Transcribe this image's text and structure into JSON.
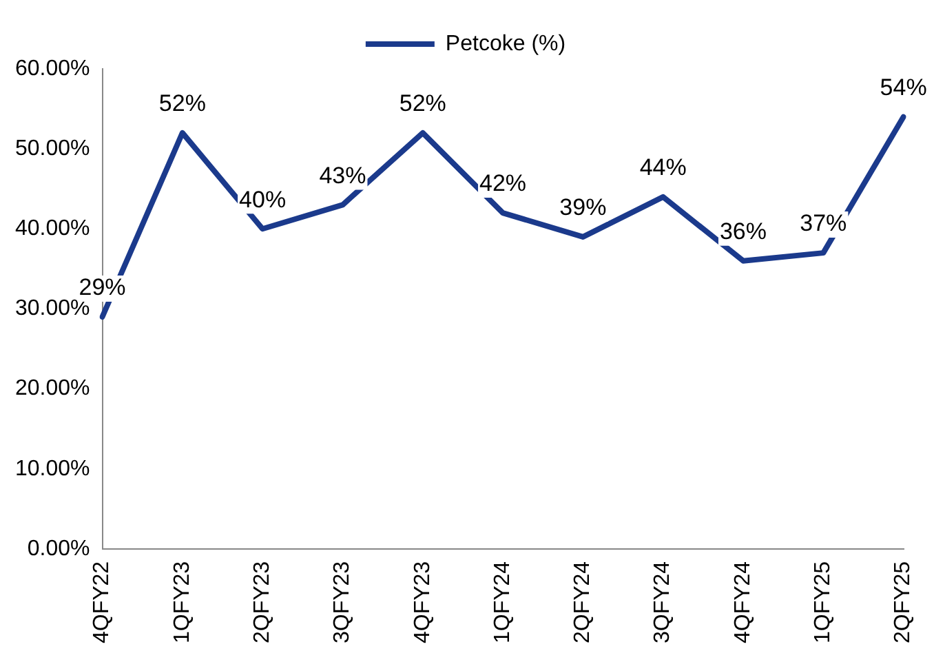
{
  "chart_data": {
    "type": "line",
    "categories": [
      "4QFY22",
      "1QFY23",
      "2QFY23",
      "3QFY23",
      "4QFY23",
      "1QFY24",
      "2QFY24",
      "3QFY24",
      "4QFY24",
      "1QFY25",
      "2QFY25"
    ],
    "series": [
      {
        "name": "Petcoke (%)",
        "color": "#1b3a8c",
        "values": [
          29,
          52,
          40,
          43,
          52,
          42,
          39,
          44,
          36,
          37,
          54
        ],
        "value_labels": [
          "29%",
          "52%",
          "40%",
          "43%",
          "52%",
          "42%",
          "39%",
          "44%",
          "36%",
          "37%",
          "54%"
        ]
      }
    ],
    "ylim": [
      0,
      60
    ],
    "yticks": [
      {
        "value": 0,
        "label": "0.00%"
      },
      {
        "value": 10,
        "label": "10.00%"
      },
      {
        "value": 20,
        "label": "20.00%"
      },
      {
        "value": 30,
        "label": "30.00%"
      },
      {
        "value": 40,
        "label": "40.00%"
      },
      {
        "value": 50,
        "label": "50.00%"
      },
      {
        "value": 60,
        "label": "60.00%"
      }
    ],
    "grid": false,
    "legend": "top",
    "marker": "none",
    "line_style": "solid"
  }
}
